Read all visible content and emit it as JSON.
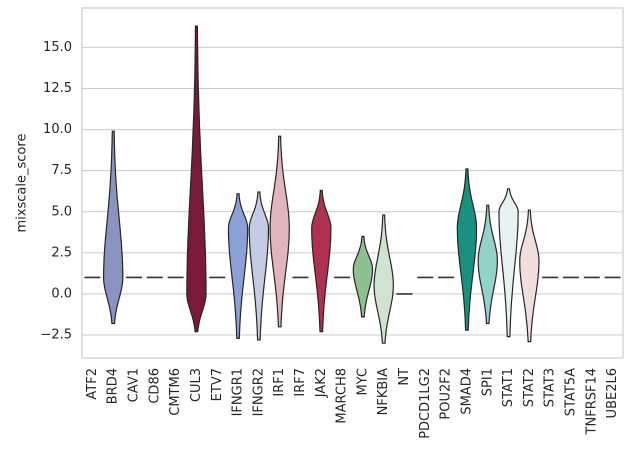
{
  "chart_data": {
    "type": "violin",
    "ylabel": "mixscale_score",
    "categories": [
      "ATF2",
      "BRD4",
      "CAV1",
      "CD86",
      "CMTM6",
      "CUL3",
      "ETV7",
      "IFNGR1",
      "IFNGR2",
      "IRF1",
      "IRF7",
      "JAK2",
      "MARCH8",
      "MYC",
      "NFKBIA",
      "NT",
      "PDCD1LG2",
      "POU2F2",
      "SMAD4",
      "SPI1",
      "STAT1",
      "STAT2",
      "STAT3",
      "STAT5A",
      "TNFRSF14",
      "UBE2L6"
    ],
    "min": [
      1,
      -1.8,
      1,
      1,
      1,
      -2.3,
      1,
      -2.7,
      -2.8,
      -2.0,
      1,
      -2.3,
      1,
      -1.4,
      -3.0,
      0,
      1,
      1,
      -2.2,
      -1.8,
      -2.6,
      -2.9,
      1,
      1,
      1,
      1
    ],
    "max": [
      1,
      9.9,
      1,
      1,
      1,
      16.3,
      1,
      6.1,
      6.2,
      9.6,
      1,
      6.3,
      1,
      3.5,
      4.8,
      0,
      1,
      1,
      7.6,
      5.4,
      6.4,
      5.1,
      1,
      1,
      1,
      1
    ],
    "peak": [
      1,
      1.0,
      1,
      1,
      1,
      0.0,
      1,
      4.0,
      4.0,
      4.0,
      1,
      4.0,
      1,
      1.5,
      0.5,
      0,
      1,
      1,
      4.0,
      2.0,
      5.0,
      2.0,
      1,
      1,
      1,
      1
    ],
    "colors": [
      "#6e6e6e",
      "#8a94c0",
      "#6e6e6e",
      "#6e6e6e",
      "#6e6e6e",
      "#7a1a3a",
      "#6e6e6e",
      "#8aa0d8",
      "#c4cbe3",
      "#e2b4bd",
      "#6e6e6e",
      "#b03050",
      "#6e6e6e",
      "#8fc08f",
      "#cfe3cf",
      "#6e6e6e",
      "#6e6e6e",
      "#6e6e6e",
      "#1a9080",
      "#92d2c8",
      "#e8f2f2",
      "#f2dede",
      "#6e6e6e",
      "#6e6e6e",
      "#6e6e6e",
      "#6e6e6e"
    ],
    "ylim": [
      -3.9,
      17.4
    ],
    "yticks": [
      {
        "value": -2.5,
        "label": "−2.5"
      },
      {
        "value": 0,
        "label": "0.0"
      },
      {
        "value": 2.5,
        "label": "2.5"
      },
      {
        "value": 5,
        "label": "5.0"
      },
      {
        "value": 7.5,
        "label": "7.5"
      },
      {
        "value": 10,
        "label": "10.0"
      },
      {
        "value": 12.5,
        "label": "12.5"
      },
      {
        "value": 15,
        "label": "15.0"
      }
    ],
    "grid": true
  }
}
